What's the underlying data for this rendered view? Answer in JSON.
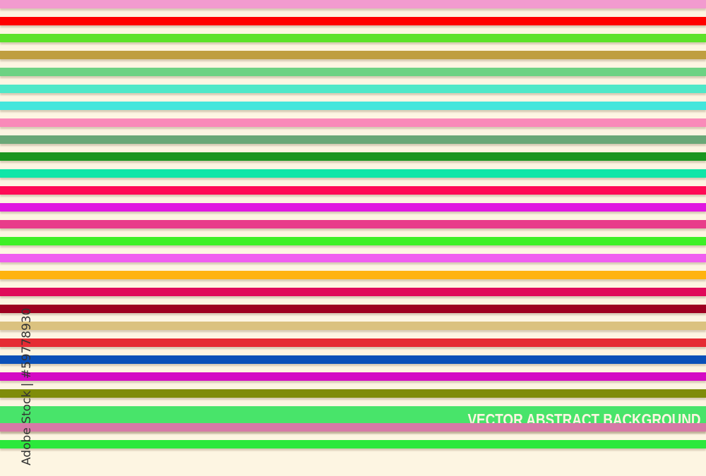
{
  "background_color": "#fdf5e2",
  "stripes": [
    {
      "color": "#f29bcf"
    },
    {
      "color": "#ff0000"
    },
    {
      "color": "#5de22a"
    },
    {
      "color": "#bf9e40"
    },
    {
      "color": "#6dd283"
    },
    {
      "color": "#4fe8c8"
    },
    {
      "color": "#44e6dc"
    },
    {
      "color": "#f98ab9"
    },
    {
      "color": "#6aa877"
    },
    {
      "color": "#1a9620"
    },
    {
      "color": "#10e6a8"
    },
    {
      "color": "#ff0a55"
    },
    {
      "color": "#e017e0"
    },
    {
      "color": "#e83c8a"
    },
    {
      "color": "#3ef025"
    },
    {
      "color": "#f05ef0"
    },
    {
      "color": "#ffb30f"
    },
    {
      "color": "#e00a5a"
    },
    {
      "color": "#9e0020"
    },
    {
      "color": "#dbc27f"
    },
    {
      "color": "#e52b33"
    },
    {
      "color": "#0a50b8"
    },
    {
      "color": "#d40ac4"
    },
    {
      "color": "#7f8c0a"
    },
    {
      "color": "#48e46a",
      "band": true
    },
    {
      "color": "#d679a6"
    },
    {
      "color": "#2ce83c"
    }
  ],
  "banner_text": "VECTOR ABSTRACT BACKGROUND",
  "watermark": "Adobe Stock | #59778930"
}
